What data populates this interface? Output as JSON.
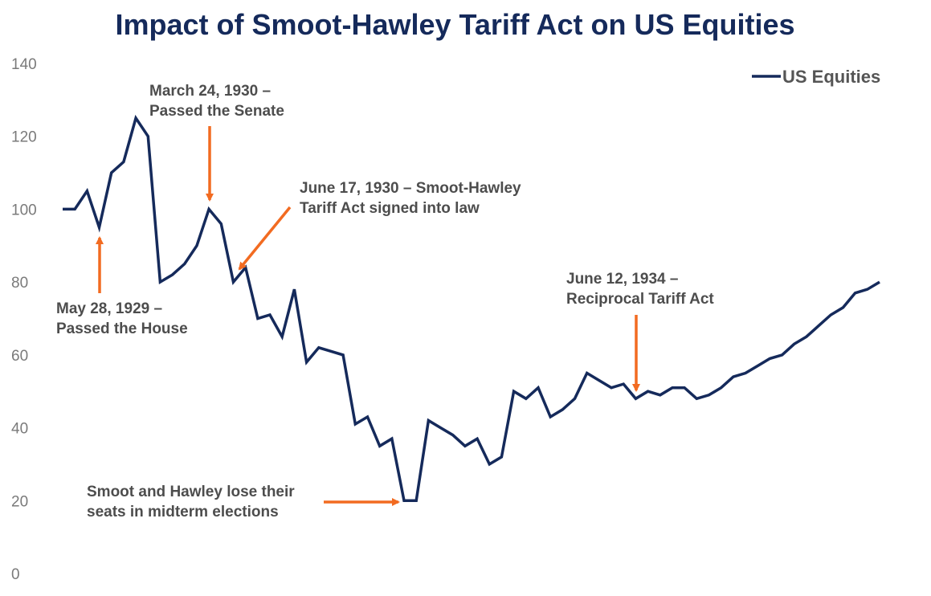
{
  "chart_data": {
    "type": "line",
    "title": "Impact of Smoot-Hawley Tariff Act on US Equities",
    "xlabel": "",
    "ylabel": "",
    "ylim": [
      0,
      140
    ],
    "yticks": [
      0,
      20,
      40,
      60,
      80,
      100,
      120,
      140
    ],
    "legend": "top-right",
    "grid": false,
    "colors": {
      "line": "#152a5b",
      "arrow": "#f26b21",
      "title": "#152a5b"
    },
    "series": [
      {
        "name": "US Equities",
        "values": [
          100,
          100,
          105,
          95,
          110,
          113,
          125,
          120,
          80,
          82,
          85,
          90,
          100,
          96,
          80,
          84,
          70,
          71,
          65,
          78,
          58,
          62,
          61,
          60,
          41,
          43,
          35,
          37,
          20,
          20,
          42,
          40,
          38,
          35,
          37,
          30,
          32,
          50,
          48,
          51,
          43,
          45,
          48,
          55,
          53,
          51,
          52,
          48,
          50,
          49,
          51,
          51,
          48,
          49,
          51,
          54,
          55,
          57,
          59,
          60,
          63,
          65,
          68,
          71,
          73,
          77,
          78,
          80
        ]
      }
    ],
    "annotations": [
      {
        "lines": [
          "May 28, 1929 –",
          "Passed the House"
        ],
        "point_index": 3
      },
      {
        "lines": [
          "March 24, 1930 –",
          "Passed the Senate"
        ],
        "point_index": 12
      },
      {
        "lines": [
          "June 17, 1930 – Smoot-Hawley",
          "Tariff Act signed into law"
        ],
        "point_index": 14
      },
      {
        "lines": [
          "Smoot and Hawley lose their",
          "seats in midterm elections"
        ],
        "point_index": 28
      },
      {
        "lines": [
          "June 12, 1934 –",
          "Reciprocal Tariff Act"
        ],
        "point_index": 47
      }
    ]
  }
}
